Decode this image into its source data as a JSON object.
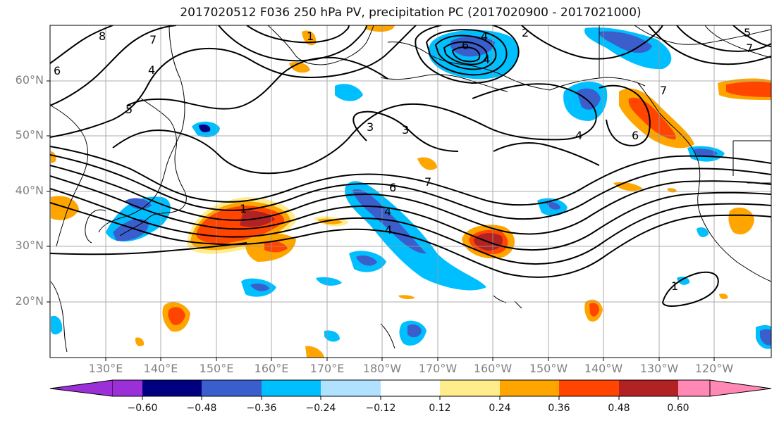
{
  "title": "2017020512 F036 250 hPa PV, precipitation PC (2017020900 - 2017021000)",
  "lat_labels": [
    "60°N",
    "50°N",
    "40°N",
    "30°N",
    "20°N"
  ],
  "lon_labels": [
    "130°E",
    "140°E",
    "150°E",
    "160°E",
    "170°E",
    "180°W",
    "170°W",
    "160°W",
    "150°W",
    "140°W",
    "130°W",
    "120°W"
  ],
  "colorbar": {
    "tick_labels": [
      "−0.60",
      "−0.48",
      "−0.36",
      "−0.24",
      "−0.12",
      "0.12",
      "0.24",
      "0.36",
      "0.48",
      "0.60"
    ],
    "colors": [
      "#9b30d9",
      "#000080",
      "#3a5fcd",
      "#00bfff",
      "#b0e2ff",
      "#ffffff",
      "#ffec8b",
      "#ffa500",
      "#ff4500",
      "#b22222",
      "#ff89b4"
    ]
  },
  "contour_labels": [
    "8",
    "6",
    "5",
    "4",
    "7",
    "1",
    "2",
    "4",
    "6",
    "3",
    "3",
    "6",
    "7",
    "4",
    "7",
    "1",
    "4",
    "4",
    "7",
    "5",
    "4",
    "1",
    "6"
  ]
}
